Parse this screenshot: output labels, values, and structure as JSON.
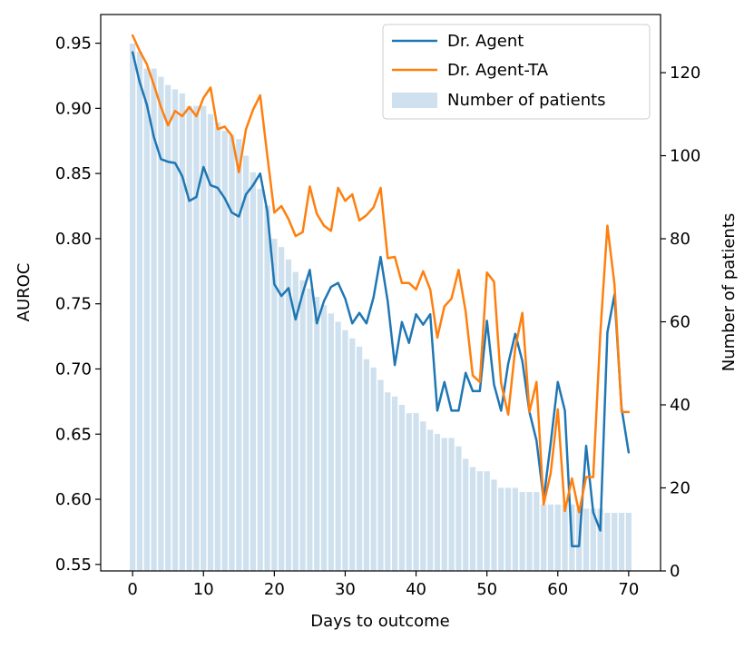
{
  "chart_data": {
    "type": "line",
    "xlabel": "Days to outcome",
    "ylabel": "AUROC",
    "y2label": "Number of patients",
    "xlim": [
      -4.5,
      74.5
    ],
    "ylim": [
      0.545,
      0.972
    ],
    "y2lim": [
      0,
      134
    ],
    "x_ticks": [
      0,
      10,
      20,
      30,
      40,
      50,
      60,
      70
    ],
    "x_tick_labels": [
      "0",
      "10",
      "20",
      "30",
      "40",
      "50",
      "60",
      "70"
    ],
    "y_ticks": [
      0.55,
      0.6,
      0.65,
      0.7,
      0.75,
      0.8,
      0.85,
      0.9,
      0.95
    ],
    "y_tick_labels": [
      "0.55",
      "0.60",
      "0.65",
      "0.70",
      "0.75",
      "0.80",
      "0.85",
      "0.90",
      "0.95"
    ],
    "y2_ticks": [
      0,
      20,
      40,
      60,
      80,
      100,
      120
    ],
    "y2_tick_labels": [
      "0",
      "20",
      "40",
      "60",
      "80",
      "100",
      "120"
    ],
    "legend_position": "top-right",
    "series": [
      {
        "name": "Dr. Agent",
        "axis": "left",
        "color": "#1f77b4",
        "x": [
          0,
          1,
          2,
          3,
          4,
          5,
          6,
          7,
          8,
          9,
          10,
          11,
          12,
          13,
          14,
          15,
          16,
          17,
          18,
          19,
          20,
          21,
          22,
          23,
          24,
          25,
          26,
          27,
          28,
          29,
          30,
          31,
          32,
          33,
          34,
          35,
          36,
          37,
          38,
          39,
          40,
          41,
          42,
          43,
          44,
          45,
          46,
          47,
          48,
          49,
          50,
          51,
          52,
          53,
          54,
          55,
          56,
          57,
          58,
          59,
          60,
          61,
          62,
          63,
          64,
          65,
          66,
          67,
          68,
          69,
          70
        ],
        "values": [
          0.943,
          0.92,
          0.903,
          0.878,
          0.861,
          0.859,
          0.858,
          0.848,
          0.829,
          0.832,
          0.855,
          0.841,
          0.839,
          0.831,
          0.82,
          0.817,
          0.834,
          0.841,
          0.85,
          0.821,
          0.765,
          0.756,
          0.762,
          0.738,
          0.758,
          0.776,
          0.735,
          0.752,
          0.763,
          0.766,
          0.754,
          0.735,
          0.743,
          0.735,
          0.755,
          0.786,
          0.752,
          0.703,
          0.736,
          0.72,
          0.742,
          0.734,
          0.742,
          0.668,
          0.69,
          0.668,
          0.668,
          0.697,
          0.683,
          0.683,
          0.737,
          0.688,
          0.668,
          0.704,
          0.727,
          0.706,
          0.667,
          0.645,
          0.6,
          0.643,
          0.69,
          0.668,
          0.564,
          0.564,
          0.641,
          0.59,
          0.576,
          0.728,
          0.757,
          0.67,
          0.636
        ]
      },
      {
        "name": "Dr. Agent-TA",
        "axis": "left",
        "color": "#ff7f0e",
        "x": [
          0,
          1,
          2,
          3,
          4,
          5,
          6,
          7,
          8,
          9,
          10,
          11,
          12,
          13,
          14,
          15,
          16,
          17,
          18,
          19,
          20,
          21,
          22,
          23,
          24,
          25,
          26,
          27,
          28,
          29,
          30,
          31,
          32,
          33,
          34,
          35,
          36,
          37,
          38,
          39,
          40,
          41,
          42,
          43,
          44,
          45,
          46,
          47,
          48,
          49,
          50,
          51,
          52,
          53,
          54,
          55,
          56,
          57,
          58,
          59,
          60,
          61,
          62,
          63,
          64,
          65,
          66,
          67,
          68,
          69,
          70
        ],
        "values": [
          0.956,
          0.944,
          0.934,
          0.918,
          0.901,
          0.887,
          0.898,
          0.894,
          0.901,
          0.894,
          0.908,
          0.916,
          0.884,
          0.886,
          0.879,
          0.851,
          0.884,
          0.899,
          0.91,
          0.864,
          0.82,
          0.825,
          0.815,
          0.802,
          0.805,
          0.84,
          0.819,
          0.81,
          0.806,
          0.839,
          0.829,
          0.834,
          0.814,
          0.818,
          0.824,
          0.839,
          0.785,
          0.786,
          0.766,
          0.766,
          0.761,
          0.775,
          0.761,
          0.724,
          0.748,
          0.754,
          0.776,
          0.744,
          0.695,
          0.69,
          0.774,
          0.767,
          0.689,
          0.665,
          0.716,
          0.743,
          0.667,
          0.69,
          0.596,
          0.62,
          0.669,
          0.591,
          0.616,
          0.59,
          0.617,
          0.617,
          0.727,
          0.81,
          0.765,
          0.667,
          0.667
        ]
      },
      {
        "name": "Number of patients",
        "axis": "right",
        "type": "bar",
        "color": "#cfe1ee",
        "x": [
          0,
          1,
          2,
          3,
          4,
          5,
          6,
          7,
          8,
          9,
          10,
          11,
          12,
          13,
          14,
          15,
          16,
          17,
          18,
          19,
          20,
          21,
          22,
          23,
          24,
          25,
          26,
          27,
          28,
          29,
          30,
          31,
          32,
          33,
          34,
          35,
          36,
          37,
          38,
          39,
          40,
          41,
          42,
          43,
          44,
          45,
          46,
          47,
          48,
          49,
          50,
          51,
          52,
          53,
          54,
          55,
          56,
          57,
          58,
          59,
          60,
          61,
          62,
          63,
          64,
          65,
          66,
          67,
          68,
          69,
          70
        ],
        "values": [
          127,
          125,
          121,
          121,
          119,
          117,
          116,
          115,
          112,
          112,
          112,
          110,
          108,
          106,
          105,
          104,
          100,
          96,
          92,
          88,
          80,
          78,
          75,
          72,
          70,
          68,
          66,
          64,
          62,
          60,
          58,
          56,
          54,
          51,
          49,
          46,
          43,
          42,
          40,
          38,
          38,
          36,
          34,
          33,
          32,
          32,
          30,
          27,
          25,
          24,
          24,
          22,
          20,
          20,
          20,
          19,
          19,
          19,
          16,
          16,
          16,
          16,
          16,
          15,
          15,
          15,
          15,
          14,
          14,
          14,
          14
        ]
      }
    ]
  }
}
